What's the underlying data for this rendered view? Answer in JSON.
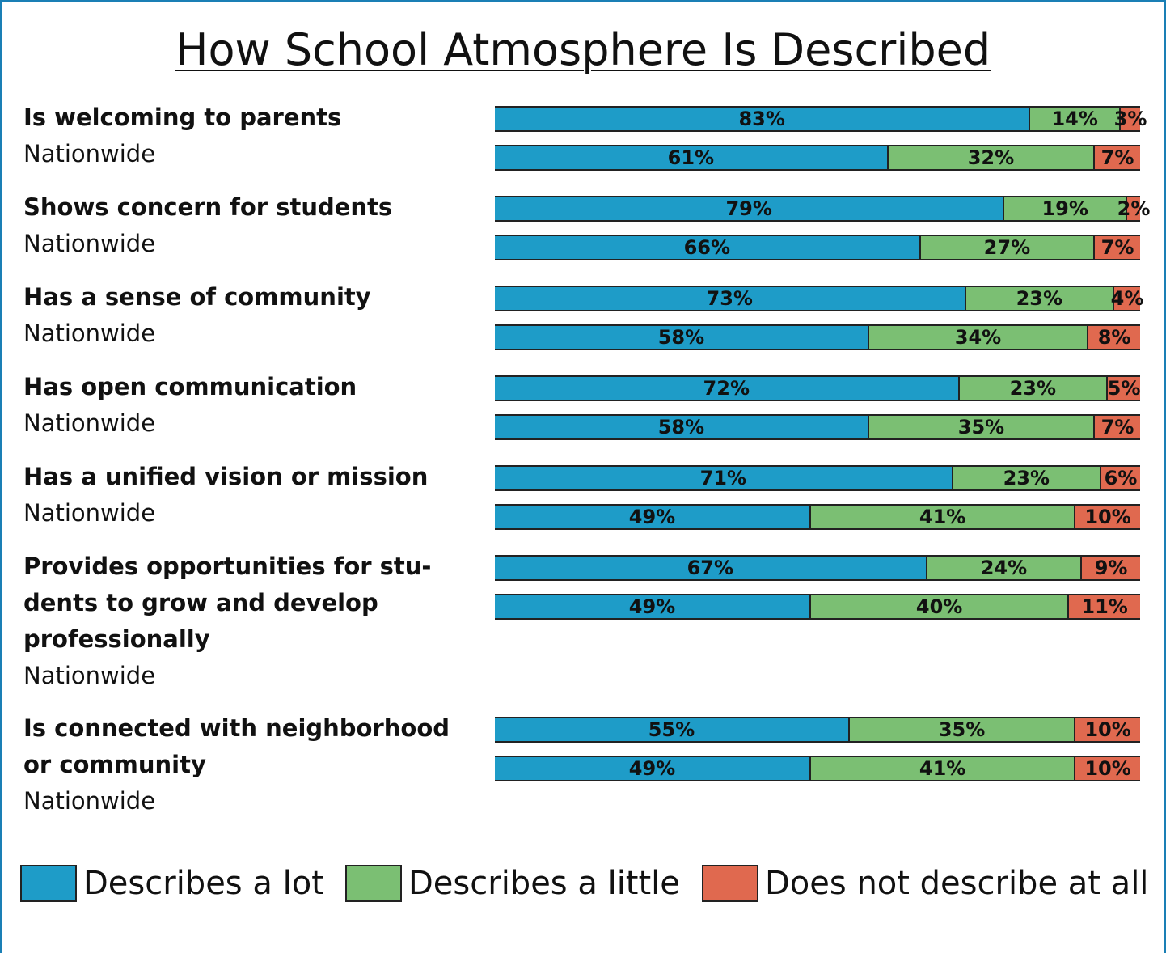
{
  "chart_data": {
    "type": "stacked-bar",
    "title": "How School Atmosphere Is Described",
    "categories": [
      "Is welcoming to parents",
      "Nationwide",
      "Shows concern for students",
      "Nationwide",
      "Has a sense of community",
      "Nationwide",
      "Has open communication",
      "Nationwide",
      "Has a unified vision or mission",
      "Nationwide",
      "Provides opportunities for stu­dents to grow and develop professionally",
      "Nationwide",
      "Is connected with neighborhood or community",
      "Nationwide"
    ],
    "xlim": [
      0,
      100
    ],
    "legend": "bottom",
    "series": [
      {
        "name": "Describes a lot",
        "color": "#1e9cc8",
        "values": [
          83,
          61,
          79,
          66,
          73,
          58,
          72,
          58,
          71,
          49,
          67,
          49,
          55,
          49
        ],
        "value_labels": [
          "83%",
          "61%",
          "79%",
          "66%",
          "73%",
          "58%",
          "72%",
          "58%",
          "71%",
          "49%",
          "67%",
          "49%",
          "55%",
          "49%"
        ]
      },
      {
        "name": "Describes a little",
        "color": "#7bbf73",
        "values": [
          14,
          32,
          19,
          27,
          23,
          34,
          23,
          35,
          23,
          41,
          24,
          40,
          35,
          41
        ],
        "value_labels": [
          "14%",
          "32%",
          "19%",
          "27%",
          "23%",
          "34%",
          "23%",
          "35%",
          "23%",
          "41%",
          "24%",
          "40%",
          "35%",
          "41%"
        ]
      },
      {
        "name": "Does not describe at all",
        "color": "#e0694f",
        "values": [
          3,
          7,
          2,
          7,
          4,
          8,
          5,
          7,
          6,
          10,
          9,
          11,
          10,
          10
        ],
        "value_labels": [
          "3%",
          "7%",
          "2%",
          "7%",
          "4%",
          "8%",
          "5%",
          "7%",
          "6%",
          "10%",
          "9%",
          "11%",
          "10%",
          "10%"
        ]
      }
    ]
  }
}
